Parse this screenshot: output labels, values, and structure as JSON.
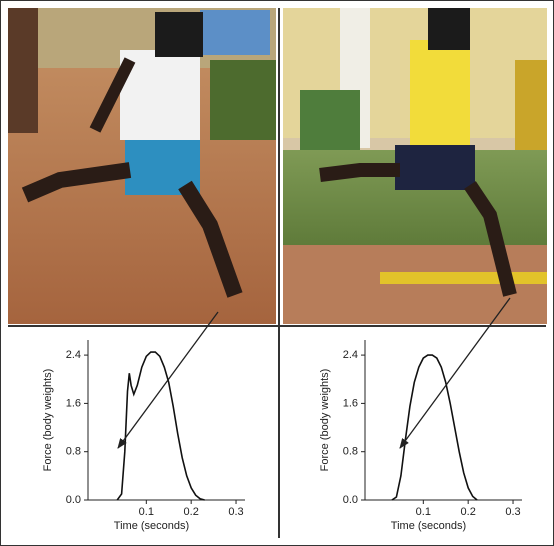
{
  "chart_data": [
    {
      "type": "line",
      "ylabel": "Force (body weights)",
      "xlabel": "Time (seconds)",
      "xlim": [
        -0.03,
        0.32
      ],
      "ylim": [
        0,
        2.65
      ],
      "xticks": [
        0.1,
        0.2,
        0.3
      ],
      "yticks": [
        {
          "value": 0,
          "label": "0.0"
        },
        0.8,
        1.6,
        2.4
      ],
      "color": "#111111",
      "x": [
        0.035,
        0.045,
        0.052,
        0.058,
        0.062,
        0.066,
        0.072,
        0.08,
        0.09,
        0.1,
        0.11,
        0.12,
        0.13,
        0.14,
        0.15,
        0.16,
        0.17,
        0.18,
        0.19,
        0.2,
        0.21,
        0.22,
        0.23
      ],
      "values": [
        0,
        0.1,
        0.8,
        1.8,
        2.1,
        1.9,
        1.75,
        1.9,
        2.2,
        2.38,
        2.45,
        2.45,
        2.38,
        2.2,
        1.95,
        1.55,
        1.1,
        0.7,
        0.4,
        0.2,
        0.08,
        0.02,
        0
      ]
    },
    {
      "type": "line",
      "ylabel": "Force (body weights)",
      "xlabel": "Time (seconds)",
      "xlim": [
        -0.03,
        0.32
      ],
      "ylim": [
        0,
        2.65
      ],
      "xticks": [
        0.1,
        0.2,
        0.3
      ],
      "yticks": [
        {
          "value": 0,
          "label": "0.0"
        },
        0.8,
        1.6,
        2.4
      ],
      "color": "#111111",
      "x": [
        0.03,
        0.04,
        0.05,
        0.06,
        0.07,
        0.08,
        0.09,
        0.1,
        0.11,
        0.12,
        0.13,
        0.14,
        0.15,
        0.16,
        0.17,
        0.18,
        0.19,
        0.2,
        0.21,
        0.22
      ],
      "values": [
        0,
        0.05,
        0.4,
        1.0,
        1.55,
        1.95,
        2.2,
        2.35,
        2.4,
        2.4,
        2.35,
        2.2,
        1.95,
        1.6,
        1.2,
        0.8,
        0.45,
        0.2,
        0.06,
        0
      ]
    }
  ]
}
